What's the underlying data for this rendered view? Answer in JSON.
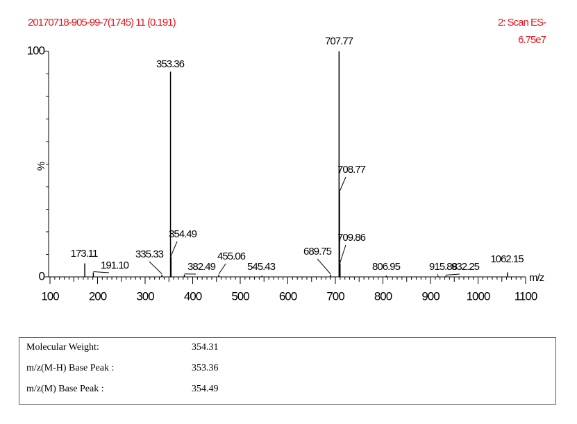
{
  "chart_data": {
    "type": "stem",
    "title": "20170718-905-99-7(1745) 11 (0.191)",
    "scan": "2: Scan ES-",
    "intensity": "6.75e7",
    "ylabel": "%",
    "xlabel": "m/z",
    "x": [
      173.11,
      191.1,
      335.33,
      353.36,
      354.49,
      382.49,
      455.06,
      545.43,
      689.75,
      707.77,
      708.77,
      709.86,
      806.95,
      915.88,
      932.25,
      1062.15
    ],
    "x_labels": [
      "173.11",
      "191.10",
      "335.33",
      "353.36",
      "354.49",
      "382.49",
      "455.06",
      "545.43",
      "689.75",
      "707.77",
      "708.77",
      "709.86",
      "806.95",
      "915.88",
      "932.25",
      "1062.15"
    ],
    "values": [
      6,
      2,
      1,
      91,
      9,
      1,
      1,
      0.5,
      1,
      100,
      37.5,
      6,
      0.5,
      0.5,
      0.5,
      2
    ],
    "color": "#000000",
    "xlim": [
      100,
      1100
    ],
    "xticks": [
      100,
      200,
      300,
      400,
      500,
      600,
      700,
      800,
      900,
      1000,
      1100
    ],
    "ylim": [
      0,
      100
    ],
    "yticks": [
      0,
      100
    ]
  },
  "table": {
    "rows": [
      [
        "Molecular Weight:",
        "354.31"
      ],
      [
        "m/z(M-H) Base Peak :",
        "353.36"
      ],
      [
        "m/z(M) Base Peak :",
        "354.49"
      ]
    ]
  }
}
